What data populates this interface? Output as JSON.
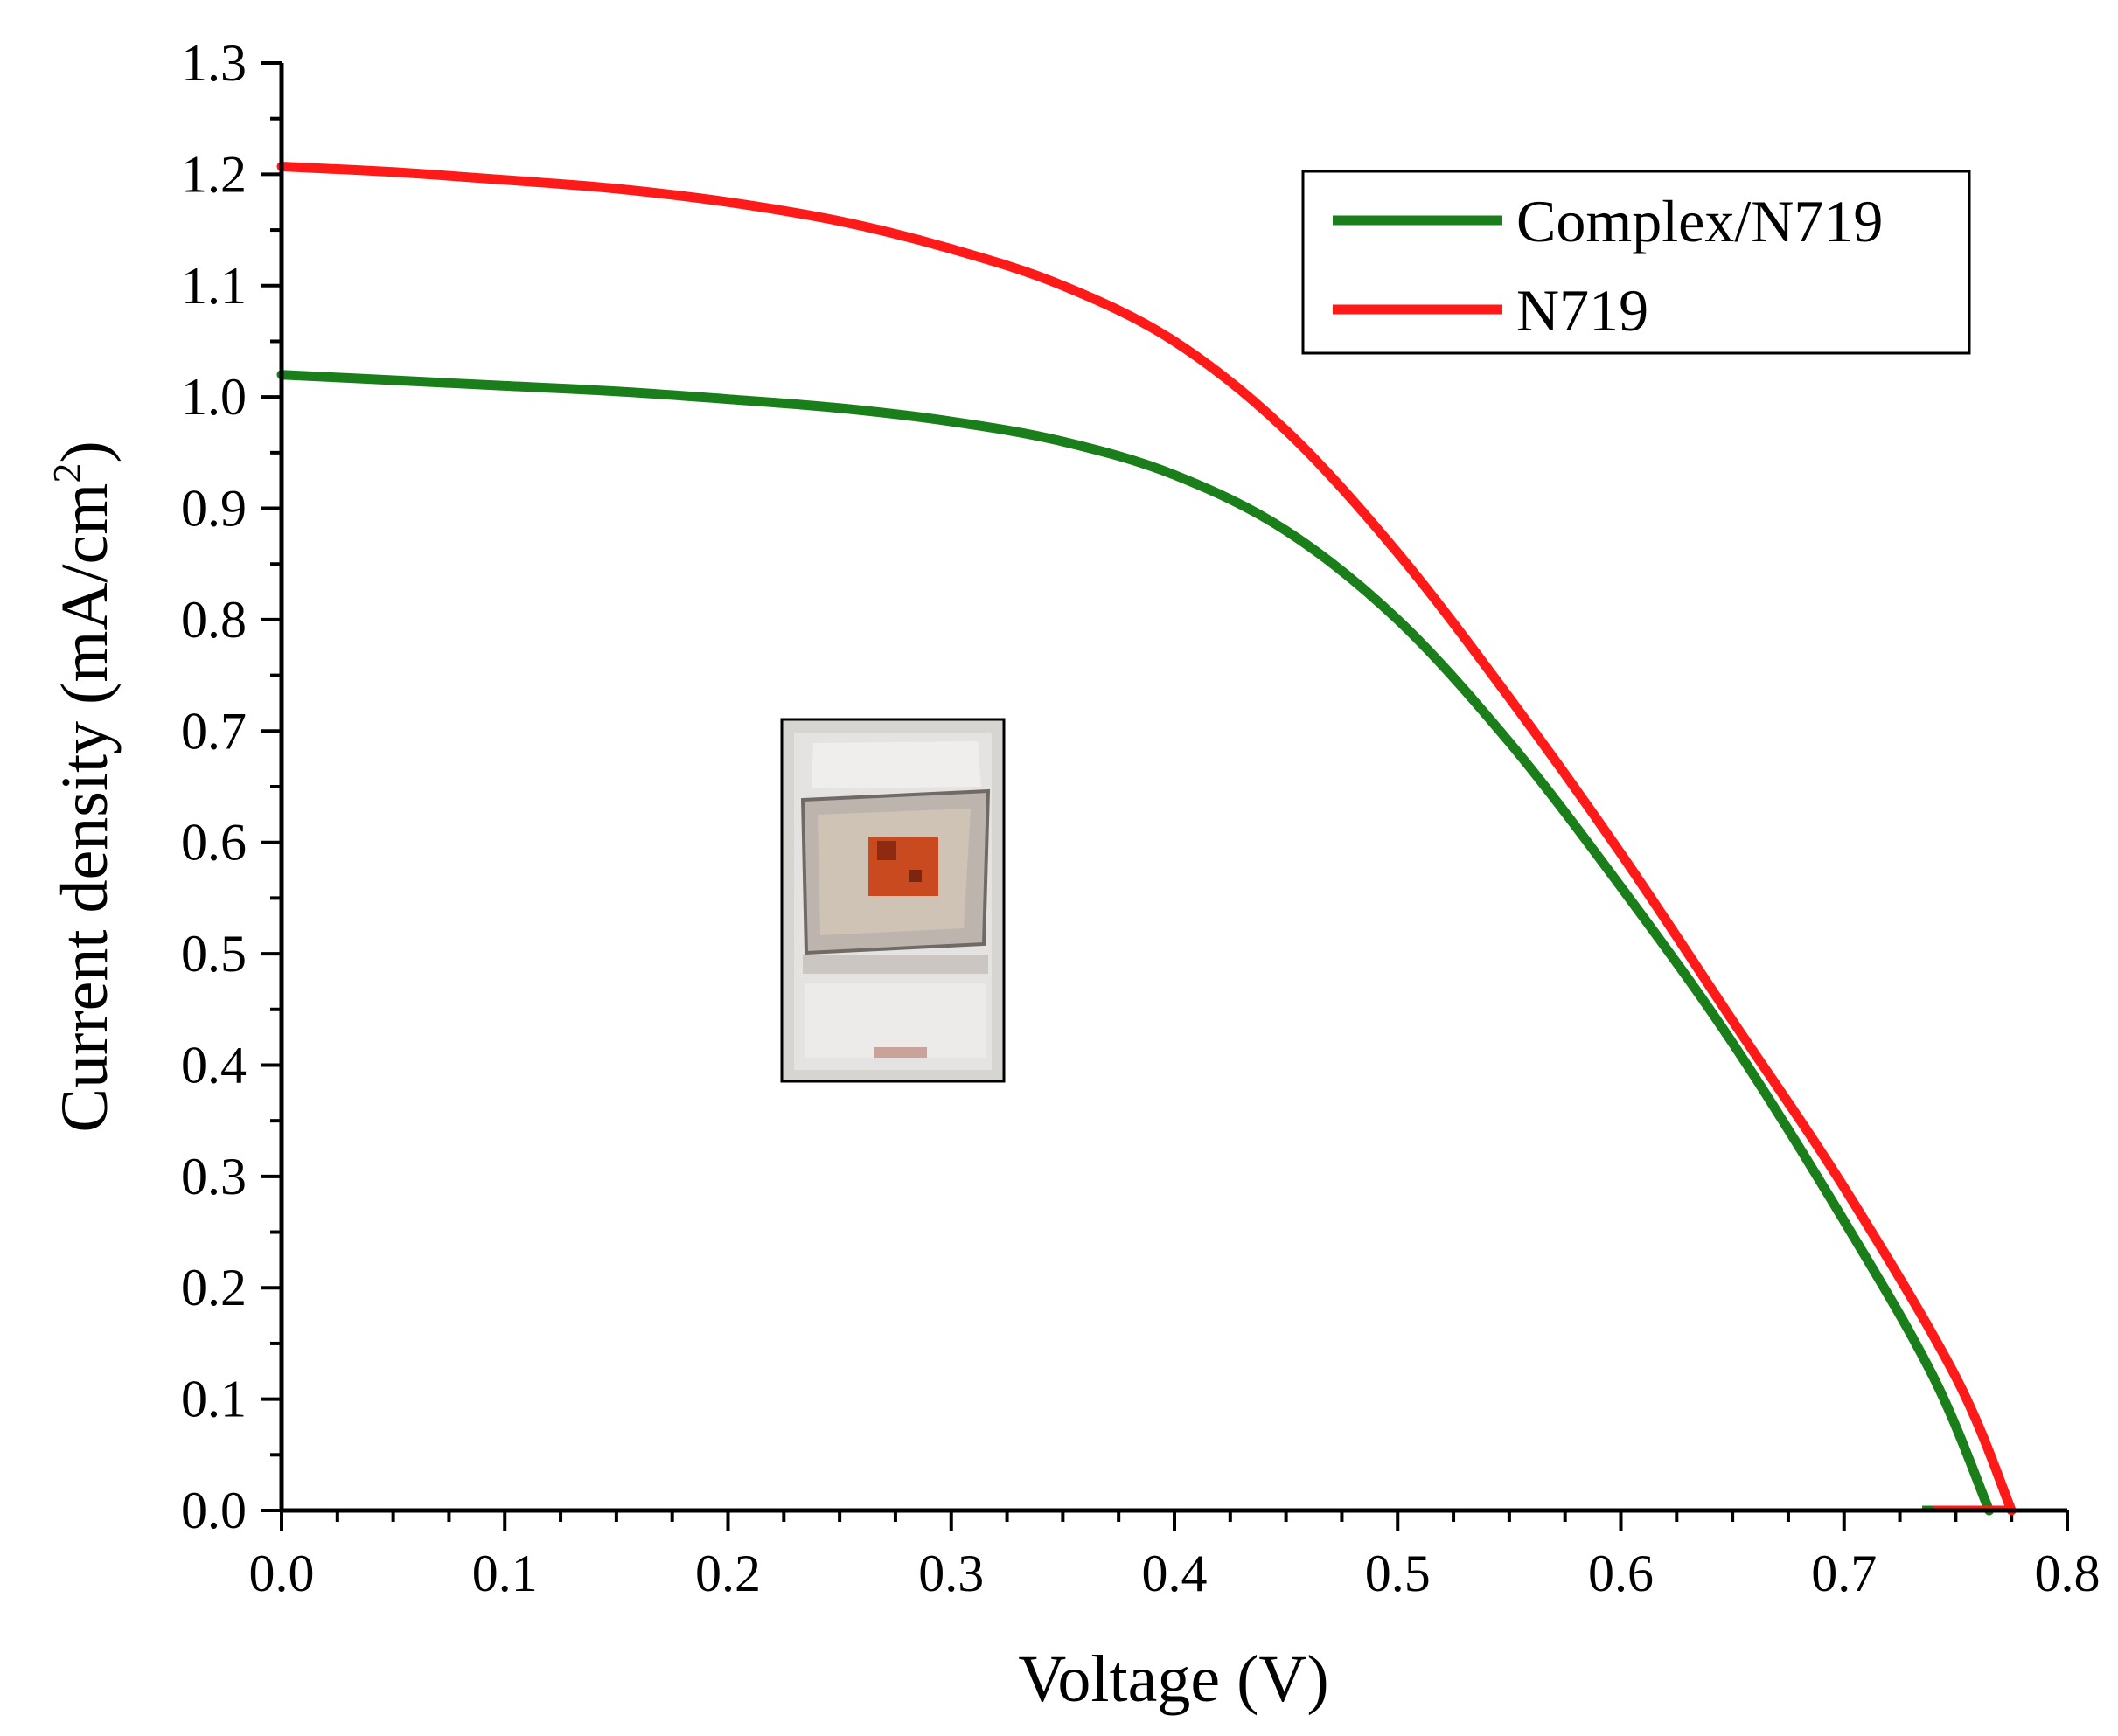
{
  "chart_data": {
    "type": "line",
    "xlabel": "Voltage (V)",
    "ylabel": "Current density (mA/cm",
    "ylabel_superscript": "2",
    "ylabel_suffix": ")",
    "xlim": [
      0.0,
      0.8
    ],
    "ylim": [
      0.0,
      1.3
    ],
    "x_ticks": [
      "0.0",
      "0.1",
      "0.2",
      "0.3",
      "0.4",
      "0.5",
      "0.6",
      "0.7",
      "0.8"
    ],
    "y_ticks": [
      "0.0",
      "0.1",
      "0.2",
      "0.3",
      "0.4",
      "0.5",
      "0.6",
      "0.7",
      "0.8",
      "0.9",
      "1.0",
      "1.1",
      "1.2",
      "1.3"
    ],
    "grid": false,
    "legend_position": "top-right",
    "inset": "photo of dye-sensitized solar cell",
    "series": [
      {
        "name": "Complex/N719",
        "color": "#1a7f1a",
        "x": [
          0.0,
          0.05,
          0.1,
          0.15,
          0.2,
          0.25,
          0.3,
          0.35,
          0.4,
          0.45,
          0.5,
          0.55,
          0.6,
          0.65,
          0.7,
          0.74,
          0.765
        ],
        "y": [
          1.02,
          1.015,
          1.01,
          1.005,
          0.998,
          0.99,
          0.978,
          0.96,
          0.93,
          0.88,
          0.8,
          0.69,
          0.56,
          0.42,
          0.26,
          0.12,
          0.0
        ]
      },
      {
        "name": "N719",
        "color": "#ff1a1a",
        "x": [
          0.0,
          0.05,
          0.1,
          0.15,
          0.2,
          0.25,
          0.3,
          0.35,
          0.4,
          0.45,
          0.5,
          0.55,
          0.6,
          0.65,
          0.7,
          0.75,
          0.775
        ],
        "y": [
          1.207,
          1.202,
          1.195,
          1.187,
          1.175,
          1.158,
          1.133,
          1.1,
          1.05,
          0.97,
          0.86,
          0.73,
          0.59,
          0.44,
          0.29,
          0.12,
          0.0
        ]
      }
    ]
  }
}
